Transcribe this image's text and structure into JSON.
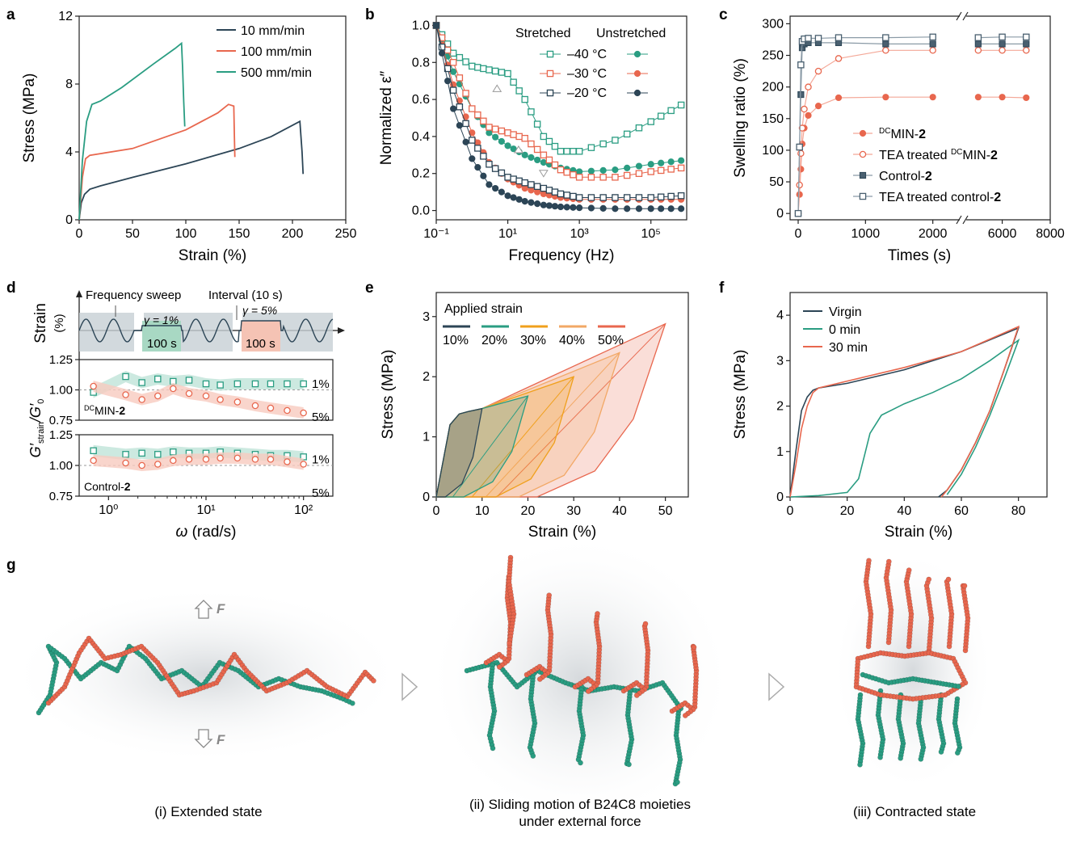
{
  "panel_letters": [
    "a",
    "b",
    "c",
    "d",
    "e",
    "f",
    "g"
  ],
  "chart_data": [
    {
      "panel": "a",
      "type": "line",
      "xlabel": "Strain (%)",
      "ylabel": "Stress (MPa)",
      "xlim": [
        0,
        250
      ],
      "ylim": [
        0,
        12
      ],
      "xticks": [
        0,
        50,
        100,
        150,
        200,
        250
      ],
      "yticks": [
        0,
        4,
        8,
        12
      ],
      "legend_position": "top-right",
      "series": [
        {
          "name": "10 mm/min",
          "color": "#2c4556",
          "x": [
            0,
            2,
            5,
            10,
            20,
            50,
            100,
            150,
            180,
            207,
            209,
            210
          ],
          "y": [
            0,
            1.0,
            1.5,
            1.8,
            2.0,
            2.5,
            3.3,
            4.2,
            4.9,
            5.8,
            4.0,
            2.7
          ]
        },
        {
          "name": "100 mm/min",
          "color": "#e8674e",
          "x": [
            0,
            3,
            6,
            10,
            20,
            50,
            100,
            130,
            140,
            145,
            145.5,
            146
          ],
          "y": [
            0,
            2.5,
            3.6,
            3.8,
            3.9,
            4.2,
            5.3,
            6.3,
            6.8,
            6.7,
            5.0,
            3.7
          ]
        },
        {
          "name": "500 mm/min",
          "color": "#2a9d82",
          "x": [
            0,
            3,
            7,
            12,
            20,
            40,
            70,
            90,
            96,
            97,
            98,
            99
          ],
          "y": [
            0,
            3.5,
            5.8,
            6.8,
            7.0,
            7.8,
            9.2,
            10.1,
            10.4,
            9.0,
            7.0,
            5.5
          ]
        }
      ]
    },
    {
      "panel": "b",
      "type": "scatter",
      "x_scale": "log",
      "xlabel": "Frequency (Hz)",
      "ylabel": "Normalized ε″",
      "xlim": [
        0.1,
        1000000
      ],
      "ylim": [
        -0.05,
        1.05
      ],
      "xtick_labels": [
        "10⁻¹",
        "10¹",
        "10³",
        "10⁵"
      ],
      "xtick_values": [
        0.1,
        10,
        1000,
        100000
      ],
      "yticks": [
        0.0,
        0.2,
        0.4,
        0.6,
        0.8,
        1.0
      ],
      "legend_headers": [
        "Stretched",
        "Unstretched"
      ],
      "legend_rows": [
        "–40 °C",
        "–30 °C",
        "–20 °C"
      ],
      "series": [
        {
          "name": "–40 °C stretched",
          "color": "#2a9d82",
          "marker": "open-square",
          "x": [
            0.1,
            0.3,
            1,
            3,
            10,
            30,
            100,
            300,
            1000,
            10000,
            100000,
            700000
          ],
          "y": [
            1.0,
            0.85,
            0.78,
            0.76,
            0.74,
            0.6,
            0.4,
            0.32,
            0.32,
            0.38,
            0.48,
            0.57
          ]
        },
        {
          "name": "–40 °C unstretched",
          "color": "#2a9d82",
          "marker": "filled-circle",
          "x": [
            0.1,
            0.3,
            1,
            3,
            10,
            30,
            100,
            300,
            1000,
            10000,
            100000,
            700000
          ],
          "y": [
            1.0,
            0.75,
            0.55,
            0.42,
            0.35,
            0.3,
            0.26,
            0.23,
            0.21,
            0.22,
            0.25,
            0.27
          ]
        },
        {
          "name": "–30 °C stretched",
          "color": "#e8674e",
          "marker": "open-square",
          "x": [
            0.1,
            0.3,
            1,
            3,
            10,
            30,
            100,
            300,
            1000,
            10000,
            100000,
            700000
          ],
          "y": [
            1.0,
            0.8,
            0.55,
            0.45,
            0.42,
            0.39,
            0.3,
            0.22,
            0.18,
            0.18,
            0.21,
            0.23
          ]
        },
        {
          "name": "–30 °C unstretched",
          "color": "#e8674e",
          "marker": "filled-circle",
          "x": [
            0.1,
            0.3,
            1,
            3,
            10,
            30,
            100,
            300,
            1000,
            10000,
            100000,
            700000
          ],
          "y": [
            1.0,
            0.68,
            0.42,
            0.26,
            0.17,
            0.12,
            0.09,
            0.07,
            0.06,
            0.06,
            0.06,
            0.06
          ]
        },
        {
          "name": "–20 °C stretched",
          "color": "#2c4556",
          "marker": "open-square",
          "x": [
            0.1,
            0.3,
            1,
            3,
            10,
            30,
            100,
            300,
            1000,
            10000,
            100000,
            700000
          ],
          "y": [
            1.0,
            0.65,
            0.38,
            0.25,
            0.18,
            0.15,
            0.12,
            0.09,
            0.07,
            0.07,
            0.07,
            0.08
          ]
        },
        {
          "name": "–20 °C unstretched",
          "color": "#2c4556",
          "marker": "filled-circle",
          "x": [
            0.1,
            0.3,
            1,
            3,
            10,
            30,
            100,
            300,
            1000,
            10000,
            100000,
            700000
          ],
          "y": [
            1.0,
            0.55,
            0.28,
            0.14,
            0.08,
            0.05,
            0.03,
            0.02,
            0.015,
            0.01,
            0.01,
            0.01
          ]
        }
      ]
    },
    {
      "panel": "c",
      "type": "scatter",
      "broken_x_axis": true,
      "xlabel": "Times (s)",
      "ylabel": "Swelling ratio (%)",
      "xticks": [
        0,
        1000,
        2000,
        6000,
        8000
      ],
      "ylim": [
        0,
        300
      ],
      "yticks": [
        0,
        50,
        100,
        150,
        200,
        250,
        300
      ],
      "legend_position": "bottom-right",
      "series": [
        {
          "name": "MIN-2",
          "name_prefix": "DC",
          "color": "#e8674e",
          "marker": "filled-circle",
          "x": [
            0,
            20,
            40,
            60,
            90,
            150,
            300,
            600,
            1300,
            2000,
            5000,
            6000,
            7000
          ],
          "y": [
            0,
            30,
            70,
            110,
            135,
            155,
            170,
            183,
            184,
            184,
            184,
            184,
            183
          ]
        },
        {
          "name": "TEA treated MIN-2",
          "name_prefix": "DC",
          "color": "#e8674e",
          "marker": "open-circle",
          "x": [
            0,
            20,
            40,
            60,
            90,
            150,
            300,
            600,
            1300,
            2000,
            5000,
            6000,
            7000
          ],
          "y": [
            0,
            45,
            95,
            135,
            165,
            200,
            225,
            245,
            258,
            258,
            258,
            258,
            258
          ]
        },
        {
          "name": "Control-2",
          "color": "#4a6070",
          "marker": "filled-square",
          "x": [
            0,
            20,
            40,
            60,
            90,
            150,
            300,
            600,
            1300,
            2000,
            5000,
            6000,
            7000
          ],
          "y": [
            0,
            105,
            188,
            262,
            268,
            270,
            270,
            270,
            268,
            268,
            268,
            268,
            268
          ]
        },
        {
          "name": "TEA treated control-2",
          "color": "#4a6070",
          "marker": "open-square",
          "x": [
            0,
            20,
            40,
            60,
            90,
            150,
            300,
            600,
            1300,
            2000,
            5000,
            6000,
            7000
          ],
          "y": [
            0,
            105,
            235,
            272,
            276,
            277,
            277,
            278,
            278,
            279,
            278,
            279,
            279
          ]
        }
      ]
    },
    {
      "panel": "d",
      "type": "scatter",
      "x_scale": "log",
      "xlabel": "ω (rad/s)",
      "ylabel_main": "G′",
      "ylabel_sub": "strain",
      "ylabel_main2": "/G′",
      "ylabel_sub2": "0",
      "xlim": [
        0.5,
        200
      ],
      "xtick_labels": [
        "10⁰",
        "10¹",
        "10²"
      ],
      "xtick_values": [
        1,
        10,
        100
      ],
      "ytick_labels": [
        "1.25",
        "1.00",
        "0.75"
      ],
      "protocol": {
        "ylabel": "Strain",
        "ylabel_unit": "(%)",
        "frequency_sweep": "Frequency sweep",
        "interval": "Interval (10 s)",
        "gamma1": "γ = 1%",
        "gamma2": "γ = 5%",
        "hold": "100 s"
      },
      "subplots": [
        {
          "label_prefix": "DC",
          "label": "MIN-2",
          "ylim": [
            0.75,
            1.25
          ],
          "series": [
            {
              "name": "1%",
              "color": "#2a9d82",
              "marker": "open-square",
              "x": [
                0.7,
                1.5,
                2.2,
                3.2,
                4.6,
                6.7,
                10,
                14,
                21,
                32,
                46,
                68,
                100
              ],
              "y": [
                0.98,
                1.11,
                1.06,
                1.09,
                1.07,
                1.08,
                1.05,
                1.04,
                1.05,
                1.05,
                1.05,
                1.05,
                1.05
              ]
            },
            {
              "name": "5%",
              "color": "#e8674e",
              "marker": "open-circle",
              "x": [
                0.7,
                1.5,
                2.2,
                3.2,
                4.6,
                6.7,
                10,
                14,
                21,
                32,
                46,
                68,
                100
              ],
              "y": [
                1.03,
                0.96,
                0.92,
                0.95,
                1.01,
                0.97,
                0.95,
                0.92,
                0.9,
                0.87,
                0.85,
                0.83,
                0.81
              ]
            }
          ]
        },
        {
          "label": "Control-2",
          "ylim": [
            0.75,
            1.25
          ],
          "series": [
            {
              "name": "1%",
              "color": "#2a9d82",
              "marker": "open-square",
              "x": [
                0.7,
                1.5,
                2.2,
                3.2,
                4.6,
                6.7,
                10,
                14,
                21,
                32,
                46,
                68,
                100
              ],
              "y": [
                1.12,
                1.09,
                1.1,
                1.09,
                1.11,
                1.1,
                1.1,
                1.11,
                1.1,
                1.09,
                1.08,
                1.08,
                1.07
              ]
            },
            {
              "name": "5%",
              "color": "#e8674e",
              "marker": "open-circle",
              "x": [
                0.7,
                1.5,
                2.2,
                3.2,
                4.6,
                6.7,
                10,
                14,
                21,
                32,
                46,
                68,
                100
              ],
              "y": [
                1.04,
                1.02,
                1.0,
                1.01,
                1.04,
                1.05,
                1.05,
                1.06,
                1.06,
                1.05,
                1.05,
                1.03,
                1.01
              ]
            }
          ]
        }
      ]
    },
    {
      "panel": "e",
      "type": "area",
      "xlabel": "Strain (%)",
      "ylabel": "Stress (MPa)",
      "xlim": [
        0,
        55
      ],
      "ylim": [
        0,
        3.4
      ],
      "xticks": [
        0,
        10,
        20,
        30,
        40,
        50
      ],
      "yticks": [
        0,
        1,
        2,
        3
      ],
      "legend_title": "Applied strain",
      "series": [
        {
          "name": "10%",
          "color": "#2c4556",
          "max_strain": 10,
          "max_stress": 1.47,
          "residual": 2
        },
        {
          "name": "20%",
          "color": "#2a9d82",
          "max_strain": 20,
          "max_stress": 1.68,
          "residual": 6
        },
        {
          "name": "30%",
          "color": "#f0a01c",
          "max_strain": 30,
          "max_stress": 2.0,
          "residual": 13
        },
        {
          "name": "40%",
          "color": "#f2a866",
          "max_strain": 40,
          "max_stress": 2.4,
          "residual": 18
        },
        {
          "name": "50%",
          "color": "#e8674e",
          "max_strain": 50,
          "max_stress": 2.88,
          "residual": 22
        }
      ]
    },
    {
      "panel": "f",
      "type": "line",
      "xlabel": "Strain (%)",
      "ylabel": "Stress (MPa)",
      "xlim": [
        0,
        90
      ],
      "ylim": [
        0,
        4.5
      ],
      "xticks": [
        0,
        20,
        40,
        60,
        80
      ],
      "yticks": [
        0,
        1,
        2,
        3,
        4
      ],
      "legend_position": "top-left",
      "series": [
        {
          "name": "Virgin",
          "color": "#2c4556",
          "x": [
            0,
            2,
            4,
            6,
            8,
            10,
            20,
            40,
            60,
            80,
            80,
            75,
            70,
            65,
            60,
            55,
            52
          ],
          "y": [
            0,
            1.0,
            1.9,
            2.2,
            2.35,
            2.4,
            2.5,
            2.8,
            3.2,
            3.72,
            3.72,
            2.8,
            1.9,
            1.2,
            0.6,
            0.15,
            0
          ]
        },
        {
          "name": "0 min",
          "color": "#2a9d82",
          "x": [
            0,
            10,
            20,
            24,
            26,
            28,
            32,
            40,
            50,
            60,
            70,
            80,
            80,
            75,
            70,
            65,
            60,
            55
          ],
          "y": [
            0,
            0.03,
            0.1,
            0.4,
            0.9,
            1.4,
            1.8,
            2.05,
            2.3,
            2.6,
            3.0,
            3.45,
            3.45,
            2.6,
            1.8,
            1.1,
            0.5,
            0.05
          ]
        },
        {
          "name": "30 min",
          "color": "#e8674e",
          "x": [
            0,
            2,
            4,
            6,
            8,
            10,
            20,
            40,
            60,
            80,
            80,
            75,
            70,
            65,
            60,
            55,
            53
          ],
          "y": [
            0,
            0.7,
            1.5,
            2.0,
            2.3,
            2.4,
            2.55,
            2.85,
            3.2,
            3.75,
            3.75,
            2.8,
            1.9,
            1.2,
            0.6,
            0.15,
            0
          ]
        }
      ]
    }
  ],
  "schematic": {
    "force_label": "F",
    "captions": [
      "(i) Extended state",
      "(ii) Sliding motion of B24C8 moieties",
      "under external force",
      "(iii)  Contracted state"
    ]
  },
  "colors": {
    "teal": "#2a9d82",
    "orange": "#e8674e",
    "navy": "#2c4556",
    "amber": "#f0a01c"
  }
}
